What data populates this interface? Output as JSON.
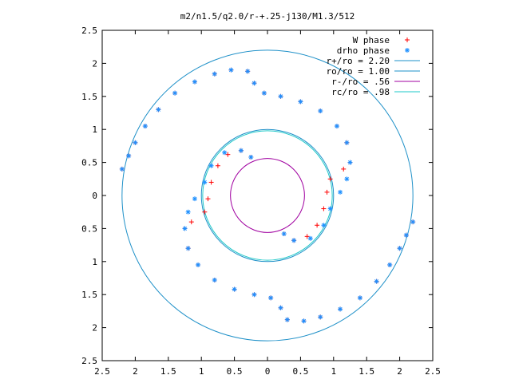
{
  "chart_data": {
    "type": "scatter",
    "title": "m2/n1.5/q2.0/r-+.25-j130/M1.3/512",
    "xlim": [
      -2.5,
      2.5
    ],
    "ylim": [
      -2.5,
      2.5
    ],
    "x_ticks": [
      -2.5,
      -2,
      -1.5,
      -1,
      -0.5,
      0,
      0.5,
      1,
      1.5,
      2,
      2.5
    ],
    "y_ticks": [
      -2.5,
      -2,
      -1.5,
      -1,
      -0.5,
      0,
      0.5,
      1,
      1.5,
      2,
      2.5
    ],
    "x_tick_labels": [
      "2.5",
      "2",
      "1.5",
      "1",
      "0.5",
      "0",
      "0.5",
      "1",
      "1.5",
      "2",
      "2.5"
    ],
    "y_tick_labels": [
      "2.5",
      "2",
      "1.5",
      "1",
      "0.5",
      "0",
      "0.5",
      "1",
      "1.5",
      "2",
      "2.5"
    ],
    "grid": false,
    "legend_position": "top-right",
    "series": [
      {
        "name": "W phase",
        "marker": "+",
        "color": "#ff0000",
        "points": [
          [
            -2.2,
            0.4
          ],
          [
            -2.1,
            0.6
          ],
          [
            -2.0,
            0.8
          ],
          [
            -1.85,
            1.05
          ],
          [
            -1.65,
            1.3
          ],
          [
            -1.4,
            1.55
          ],
          [
            -1.1,
            1.72
          ],
          [
            -0.8,
            1.84
          ],
          [
            -0.55,
            1.9
          ],
          [
            -0.3,
            1.88
          ],
          [
            -0.2,
            1.7
          ],
          [
            -0.05,
            1.55
          ],
          [
            0.2,
            1.5
          ],
          [
            0.5,
            1.42
          ],
          [
            0.8,
            1.28
          ],
          [
            1.05,
            1.05
          ],
          [
            1.2,
            0.8
          ],
          [
            1.25,
            0.5
          ],
          [
            1.15,
            0.4
          ],
          [
            0.95,
            0.25
          ],
          [
            0.9,
            0.05
          ],
          [
            0.85,
            -0.2
          ],
          [
            0.75,
            -0.45
          ],
          [
            0.6,
            -0.62
          ],
          [
            0.4,
            -0.68
          ],
          [
            0.25,
            -0.58
          ],
          [
            2.2,
            -0.4
          ],
          [
            2.1,
            -0.6
          ],
          [
            2.0,
            -0.8
          ],
          [
            1.85,
            -1.05
          ],
          [
            1.65,
            -1.3
          ],
          [
            1.4,
            -1.55
          ],
          [
            1.1,
            -1.72
          ],
          [
            0.8,
            -1.84
          ],
          [
            0.55,
            -1.9
          ],
          [
            0.3,
            -1.88
          ],
          [
            0.2,
            -1.7
          ],
          [
            0.05,
            -1.55
          ],
          [
            -0.2,
            -1.5
          ],
          [
            -0.5,
            -1.42
          ],
          [
            -0.8,
            -1.28
          ],
          [
            -1.05,
            -1.05
          ],
          [
            -1.2,
            -0.8
          ],
          [
            -1.25,
            -0.5
          ],
          [
            -1.15,
            -0.4
          ],
          [
            -0.95,
            -0.25
          ],
          [
            -0.9,
            -0.05
          ],
          [
            -0.85,
            0.2
          ],
          [
            -0.75,
            0.45
          ],
          [
            -0.6,
            0.62
          ],
          [
            -0.4,
            0.68
          ],
          [
            -0.25,
            0.58
          ]
        ]
      },
      {
        "name": "drho phase",
        "marker": "*",
        "color": "#1e90ff",
        "points": [
          [
            -2.2,
            0.4
          ],
          [
            -2.1,
            0.6
          ],
          [
            -2.0,
            0.8
          ],
          [
            -1.85,
            1.05
          ],
          [
            -1.65,
            1.3
          ],
          [
            -1.4,
            1.55
          ],
          [
            -1.1,
            1.72
          ],
          [
            -0.8,
            1.84
          ],
          [
            -0.55,
            1.9
          ],
          [
            -0.3,
            1.88
          ],
          [
            -0.2,
            1.7
          ],
          [
            -0.05,
            1.55
          ],
          [
            0.2,
            1.5
          ],
          [
            0.5,
            1.42
          ],
          [
            0.8,
            1.28
          ],
          [
            1.05,
            1.05
          ],
          [
            1.2,
            0.8
          ],
          [
            1.25,
            0.5
          ],
          [
            1.2,
            0.25
          ],
          [
            1.1,
            0.05
          ],
          [
            0.95,
            -0.2
          ],
          [
            0.85,
            -0.45
          ],
          [
            0.65,
            -0.65
          ],
          [
            0.4,
            -0.68
          ],
          [
            0.25,
            -0.58
          ],
          [
            2.2,
            -0.4
          ],
          [
            2.1,
            -0.6
          ],
          [
            2.0,
            -0.8
          ],
          [
            1.85,
            -1.05
          ],
          [
            1.65,
            -1.3
          ],
          [
            1.4,
            -1.55
          ],
          [
            1.1,
            -1.72
          ],
          [
            0.8,
            -1.84
          ],
          [
            0.55,
            -1.9
          ],
          [
            0.3,
            -1.88
          ],
          [
            0.2,
            -1.7
          ],
          [
            0.05,
            -1.55
          ],
          [
            -0.2,
            -1.5
          ],
          [
            -0.5,
            -1.42
          ],
          [
            -0.8,
            -1.28
          ],
          [
            -1.05,
            -1.05
          ],
          [
            -1.2,
            -0.8
          ],
          [
            -1.25,
            -0.5
          ],
          [
            -1.2,
            -0.25
          ],
          [
            -1.1,
            -0.05
          ],
          [
            -0.95,
            0.2
          ],
          [
            -0.85,
            0.45
          ],
          [
            -0.65,
            0.65
          ],
          [
            -0.4,
            0.68
          ],
          [
            -0.25,
            0.58
          ]
        ]
      }
    ],
    "circles": [
      {
        "name": "r+/ro = 2.20",
        "radius": 2.2,
        "color": "#1e90c8"
      },
      {
        "name": "ro/ro = 1.00",
        "radius": 1.0,
        "color": "#1e90c8"
      },
      {
        "name": "r-/ro =  .56",
        "radius": 0.56,
        "color": "#a000a0"
      },
      {
        "name": "rc/ro =  .98",
        "radius": 0.98,
        "color": "#1ec8c8"
      }
    ]
  }
}
